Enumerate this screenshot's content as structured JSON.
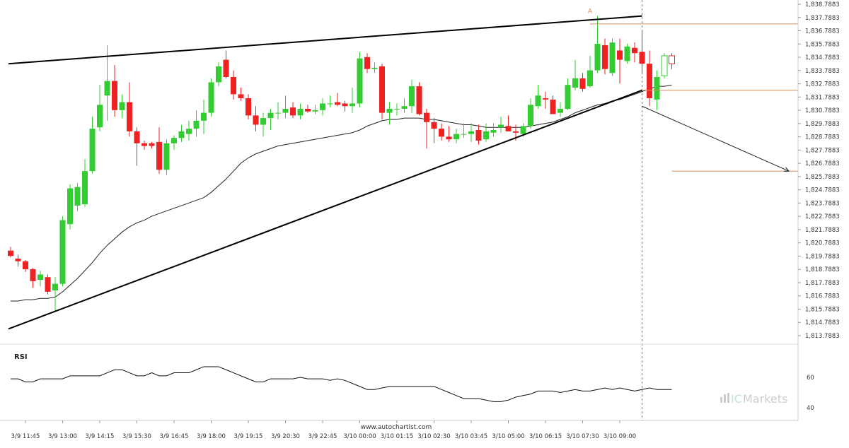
{
  "chart_data": {
    "type": "candlestick",
    "price_axis": {
      "ylim": [
        1813.7883,
        1838.7883
      ],
      "tick_labels": [
        "1,838.7883",
        "1,837.7883",
        "1,836.7883",
        "1,835.7883",
        "1,834.7883",
        "1,833.7883",
        "1,832.7883",
        "1,831.7883",
        "1,830.7883",
        "1,829.7883",
        "1,828.7883",
        "1,827.7883",
        "1,826.7883",
        "1,825.7883",
        "1,824.7883",
        "1,823.7883",
        "1,822.7883",
        "1,821.7883",
        "1,820.7883",
        "1,819.7883",
        "1,818.7883",
        "1,817.7883",
        "1,816.7883",
        "1,815.7883",
        "1,814.7883",
        "1,813.7883"
      ],
      "tick_values": [
        1838.7883,
        1837.7883,
        1836.7883,
        1835.7883,
        1834.7883,
        1833.7883,
        1832.7883,
        1831.7883,
        1830.7883,
        1829.7883,
        1828.7883,
        1827.7883,
        1826.7883,
        1825.7883,
        1824.7883,
        1823.7883,
        1822.7883,
        1821.7883,
        1820.7883,
        1819.7883,
        1818.7883,
        1817.7883,
        1816.7883,
        1815.7883,
        1814.7883,
        1813.7883
      ]
    },
    "time_axis": {
      "tick_labels": [
        "3/9 11:45",
        "3/9 13:00",
        "3/9 14:15",
        "3/9 15:30",
        "3/9 16:45",
        "3/9 18:00",
        "3/9 19:15",
        "3/9 20:30",
        "3/9 22:45",
        "3/10 00:00",
        "3/10 01:15",
        "3/10 02:30",
        "3/10 03:45",
        "3/10 05:00",
        "3/10 06:15",
        "3/10 07:30",
        "3/10 09:00"
      ],
      "tick_bar_index": [
        2,
        7,
        12,
        17,
        22,
        27,
        32,
        37,
        42,
        47,
        52,
        57,
        62,
        67,
        72,
        77,
        82
      ],
      "bar_count": 90
    },
    "candles": [
      {
        "o": 1820.2,
        "h": 1820.5,
        "l": 1819.7,
        "c": 1819.8
      },
      {
        "o": 1819.6,
        "h": 1819.9,
        "l": 1819.0,
        "c": 1819.4
      },
      {
        "o": 1819.4,
        "h": 1819.5,
        "l": 1818.6,
        "c": 1818.8
      },
      {
        "o": 1818.8,
        "h": 1818.9,
        "l": 1817.4,
        "c": 1817.9
      },
      {
        "o": 1818.0,
        "h": 1818.7,
        "l": 1817.5,
        "c": 1818.4
      },
      {
        "o": 1818.2,
        "h": 1818.4,
        "l": 1816.9,
        "c": 1817.1
      },
      {
        "o": 1817.2,
        "h": 1818.2,
        "l": 1815.6,
        "c": 1817.7
      },
      {
        "o": 1817.7,
        "h": 1822.8,
        "l": 1817.5,
        "c": 1822.5
      },
      {
        "o": 1822.2,
        "h": 1825.2,
        "l": 1821.8,
        "c": 1824.9
      },
      {
        "o": 1823.6,
        "h": 1825.3,
        "l": 1823.2,
        "c": 1825.0
      },
      {
        "o": 1823.7,
        "h": 1827.1,
        "l": 1823.5,
        "c": 1826.2
      },
      {
        "o": 1826.2,
        "h": 1830.3,
        "l": 1826.0,
        "c": 1829.4
      },
      {
        "o": 1829.5,
        "h": 1832.7,
        "l": 1829.2,
        "c": 1831.2
      },
      {
        "o": 1831.9,
        "h": 1835.7,
        "l": 1830.0,
        "c": 1833.0
      },
      {
        "o": 1833.0,
        "h": 1834.2,
        "l": 1830.3,
        "c": 1830.8
      },
      {
        "o": 1830.8,
        "h": 1832.0,
        "l": 1830.2,
        "c": 1831.4
      },
      {
        "o": 1831.4,
        "h": 1832.9,
        "l": 1828.8,
        "c": 1829.2
      },
      {
        "o": 1829.2,
        "h": 1829.5,
        "l": 1826.6,
        "c": 1828.3
      },
      {
        "o": 1828.3,
        "h": 1828.5,
        "l": 1827.8,
        "c": 1828.1
      },
      {
        "o": 1828.3,
        "h": 1828.4,
        "l": 1827.9,
        "c": 1828.1
      },
      {
        "o": 1828.4,
        "h": 1829.5,
        "l": 1826.0,
        "c": 1826.3
      },
      {
        "o": 1826.3,
        "h": 1828.6,
        "l": 1825.9,
        "c": 1828.3
      },
      {
        "o": 1828.3,
        "h": 1828.9,
        "l": 1827.8,
        "c": 1828.7
      },
      {
        "o": 1828.7,
        "h": 1829.7,
        "l": 1828.4,
        "c": 1829.2
      },
      {
        "o": 1829.0,
        "h": 1830.0,
        "l": 1828.5,
        "c": 1829.4
      },
      {
        "o": 1829.4,
        "h": 1830.8,
        "l": 1828.8,
        "c": 1830.0
      },
      {
        "o": 1830.0,
        "h": 1831.6,
        "l": 1829.0,
        "c": 1830.6
      },
      {
        "o": 1830.6,
        "h": 1833.2,
        "l": 1830.3,
        "c": 1832.9
      },
      {
        "o": 1832.9,
        "h": 1834.4,
        "l": 1832.6,
        "c": 1834.1
      },
      {
        "o": 1834.6,
        "h": 1835.3,
        "l": 1833.2,
        "c": 1833.3
      },
      {
        "o": 1833.3,
        "h": 1833.8,
        "l": 1831.6,
        "c": 1832.0
      },
      {
        "o": 1832.0,
        "h": 1832.5,
        "l": 1831.5,
        "c": 1831.7
      },
      {
        "o": 1831.7,
        "h": 1832.0,
        "l": 1830.1,
        "c": 1830.4
      },
      {
        "o": 1830.4,
        "h": 1831.1,
        "l": 1829.2,
        "c": 1829.7
      },
      {
        "o": 1829.7,
        "h": 1830.6,
        "l": 1828.8,
        "c": 1830.2
      },
      {
        "o": 1830.2,
        "h": 1830.9,
        "l": 1829.3,
        "c": 1830.6
      },
      {
        "o": 1830.6,
        "h": 1831.4,
        "l": 1830.1,
        "c": 1830.6
      },
      {
        "o": 1830.6,
        "h": 1831.9,
        "l": 1830.2,
        "c": 1830.9
      },
      {
        "o": 1831.0,
        "h": 1831.4,
        "l": 1830.2,
        "c": 1830.4
      },
      {
        "o": 1830.4,
        "h": 1831.3,
        "l": 1830.1,
        "c": 1830.9
      },
      {
        "o": 1830.9,
        "h": 1831.2,
        "l": 1830.6,
        "c": 1830.7
      },
      {
        "o": 1830.7,
        "h": 1831.2,
        "l": 1830.5,
        "c": 1830.8
      },
      {
        "o": 1830.8,
        "h": 1831.7,
        "l": 1830.4,
        "c": 1831.3
      },
      {
        "o": 1831.3,
        "h": 1831.9,
        "l": 1831.0,
        "c": 1831.3
      },
      {
        "o": 1831.4,
        "h": 1832.1,
        "l": 1831.1,
        "c": 1831.2
      },
      {
        "o": 1831.3,
        "h": 1831.5,
        "l": 1830.7,
        "c": 1831.1
      },
      {
        "o": 1831.1,
        "h": 1832.5,
        "l": 1830.6,
        "c": 1831.3
      },
      {
        "o": 1831.3,
        "h": 1835.2,
        "l": 1831.0,
        "c": 1834.7
      },
      {
        "o": 1834.8,
        "h": 1835.1,
        "l": 1833.6,
        "c": 1833.9
      },
      {
        "o": 1833.9,
        "h": 1834.4,
        "l": 1833.6,
        "c": 1834.0
      },
      {
        "o": 1834.1,
        "h": 1834.3,
        "l": 1830.1,
        "c": 1830.6
      },
      {
        "o": 1830.6,
        "h": 1831.4,
        "l": 1829.7,
        "c": 1830.9
      },
      {
        "o": 1830.9,
        "h": 1831.3,
        "l": 1830.4,
        "c": 1830.9
      },
      {
        "o": 1830.9,
        "h": 1831.7,
        "l": 1830.6,
        "c": 1831.1
      },
      {
        "o": 1831.1,
        "h": 1833.1,
        "l": 1830.6,
        "c": 1832.6
      },
      {
        "o": 1832.6,
        "h": 1832.9,
        "l": 1830.4,
        "c": 1830.5
      },
      {
        "o": 1830.6,
        "h": 1830.9,
        "l": 1827.9,
        "c": 1829.9
      },
      {
        "o": 1829.9,
        "h": 1830.2,
        "l": 1828.3,
        "c": 1829.4
      },
      {
        "o": 1829.4,
        "h": 1829.8,
        "l": 1828.5,
        "c": 1828.8
      },
      {
        "o": 1828.8,
        "h": 1829.6,
        "l": 1828.4,
        "c": 1828.6
      },
      {
        "o": 1828.6,
        "h": 1829.4,
        "l": 1828.3,
        "c": 1829.0
      },
      {
        "o": 1829.0,
        "h": 1829.8,
        "l": 1828.7,
        "c": 1829.0
      },
      {
        "o": 1829.0,
        "h": 1829.8,
        "l": 1828.4,
        "c": 1829.2
      },
      {
        "o": 1829.3,
        "h": 1829.7,
        "l": 1828.2,
        "c": 1828.5
      },
      {
        "o": 1828.6,
        "h": 1829.8,
        "l": 1828.4,
        "c": 1829.2
      },
      {
        "o": 1829.1,
        "h": 1829.8,
        "l": 1828.8,
        "c": 1829.3
      },
      {
        "o": 1829.5,
        "h": 1830.3,
        "l": 1829.1,
        "c": 1829.7
      },
      {
        "o": 1829.6,
        "h": 1830.4,
        "l": 1829.2,
        "c": 1829.2
      },
      {
        "o": 1829.2,
        "h": 1829.7,
        "l": 1828.5,
        "c": 1829.1
      },
      {
        "o": 1829.0,
        "h": 1829.8,
        "l": 1828.8,
        "c": 1829.6
      },
      {
        "o": 1829.6,
        "h": 1831.7,
        "l": 1829.4,
        "c": 1831.2
      },
      {
        "o": 1831.1,
        "h": 1832.7,
        "l": 1830.9,
        "c": 1831.9
      },
      {
        "o": 1831.7,
        "h": 1832.2,
        "l": 1830.9,
        "c": 1831.6
      },
      {
        "o": 1831.6,
        "h": 1831.9,
        "l": 1830.5,
        "c": 1830.5
      },
      {
        "o": 1830.6,
        "h": 1831.4,
        "l": 1830.3,
        "c": 1830.9
      },
      {
        "o": 1830.9,
        "h": 1833.2,
        "l": 1830.8,
        "c": 1832.7
      },
      {
        "o": 1832.5,
        "h": 1834.6,
        "l": 1832.3,
        "c": 1833.2
      },
      {
        "o": 1833.2,
        "h": 1833.6,
        "l": 1832.2,
        "c": 1832.4
      },
      {
        "o": 1832.6,
        "h": 1834.9,
        "l": 1832.5,
        "c": 1833.8
      },
      {
        "o": 1833.8,
        "h": 1837.9,
        "l": 1833.6,
        "c": 1835.8
      },
      {
        "o": 1835.7,
        "h": 1836.2,
        "l": 1833.5,
        "c": 1833.9
      },
      {
        "o": 1833.6,
        "h": 1836.2,
        "l": 1833.4,
        "c": 1835.9
      },
      {
        "o": 1835.3,
        "h": 1836.2,
        "l": 1832.8,
        "c": 1834.6
      },
      {
        "o": 1834.5,
        "h": 1835.8,
        "l": 1834.3,
        "c": 1835.6
      },
      {
        "o": 1835.5,
        "h": 1835.9,
        "l": 1834.4,
        "c": 1835.1
      },
      {
        "o": 1835.2,
        "h": 1836.8,
        "l": 1833.6,
        "c": 1834.3
      },
      {
        "o": 1834.3,
        "h": 1835.3,
        "l": 1831.1,
        "c": 1831.7
      },
      {
        "o": 1831.6,
        "h": 1833.8,
        "l": 1830.8,
        "c": 1833.3
      },
      {
        "o": 1833.4,
        "h": 1835.1,
        "l": 1833.2,
        "c": 1834.9,
        "hollow": true
      },
      {
        "o": 1834.9,
        "h": 1835.1,
        "l": 1833.9,
        "c": 1834.3,
        "hollow": true
      }
    ],
    "moving_average": [
      1816.4,
      1816.4,
      1816.5,
      1816.5,
      1816.6,
      1816.6,
      1816.7,
      1817.1,
      1817.6,
      1818.1,
      1818.7,
      1819.3,
      1820.0,
      1820.6,
      1821.1,
      1821.6,
      1822.0,
      1822.3,
      1822.5,
      1822.8,
      1823.0,
      1823.2,
      1823.4,
      1823.6,
      1823.8,
      1824.0,
      1824.2,
      1824.6,
      1825.1,
      1825.6,
      1826.2,
      1826.8,
      1827.2,
      1827.5,
      1827.7,
      1827.9,
      1828.1,
      1828.2,
      1828.3,
      1828.4,
      1828.5,
      1828.6,
      1828.7,
      1828.8,
      1828.9,
      1829.0,
      1829.1,
      1829.3,
      1829.6,
      1829.8,
      1830.0,
      1830.1,
      1830.1,
      1830.2,
      1830.2,
      1830.2,
      1830.1,
      1830.1,
      1830.0,
      1829.9,
      1829.8,
      1829.7,
      1829.7,
      1829.6,
      1829.5,
      1829.5,
      1829.5,
      1829.5,
      1829.5,
      1829.5,
      1829.6,
      1829.7,
      1829.8,
      1829.9,
      1830.1,
      1830.3,
      1830.6,
      1830.8,
      1831.0,
      1831.2,
      1831.3,
      1831.5,
      1831.6,
      1831.8,
      1832.0,
      1832.2,
      1832.4,
      1832.6,
      1832.6,
      1832.7
    ]
  },
  "overlay": {
    "label_A": "A",
    "levels": {
      "top": 1837.3,
      "mid": 1832.3,
      "target": 1826.2
    }
  },
  "rsi_panel": {
    "title": "RSI",
    "tick_labels": [
      "60",
      "40"
    ],
    "tick_values": [
      60,
      40
    ],
    "values": [
      59,
      59,
      57,
      57,
      59,
      59,
      59,
      59,
      61,
      61,
      61,
      61,
      61,
      63,
      65,
      65,
      63,
      61,
      61,
      63,
      61,
      61,
      63,
      63,
      63,
      65,
      67,
      67,
      67,
      65,
      63,
      61,
      59,
      57,
      57,
      59,
      59,
      59,
      59,
      60,
      59,
      59,
      59,
      58,
      59,
      58,
      56,
      54,
      52,
      52,
      53,
      54,
      54,
      54,
      54,
      54,
      54,
      54,
      52,
      50,
      48,
      46,
      46,
      46,
      45,
      44,
      44,
      45,
      47,
      48,
      49,
      51,
      51,
      51,
      50,
      51,
      52,
      51,
      51,
      52,
      53,
      52,
      53,
      52,
      51,
      52,
      53,
      52,
      52,
      52
    ]
  },
  "footer": {
    "source_text": "www.autochartist.com"
  },
  "watermark": {
    "text_prefix": "IC",
    "text_suffix": "Markets"
  },
  "colors": {
    "bull": "#33cc33",
    "bear": "#ee2222",
    "target": "#d98c55",
    "grid": "#e6e6e6",
    "text": "#333333"
  }
}
